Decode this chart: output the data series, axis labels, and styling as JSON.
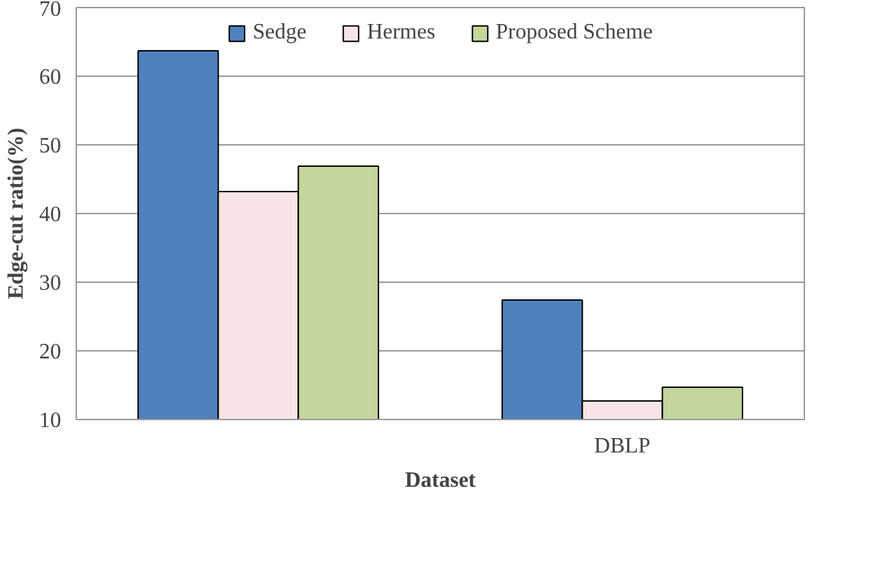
{
  "chart_data": {
    "type": "bar",
    "xlabel": "Dataset",
    "ylabel": "Edge-cut ratio(%)",
    "categories": [
      null,
      "DBLP"
    ],
    "series": [
      {
        "name": "Sedge",
        "color": "#4f81bd",
        "values": [
          63.7,
          27.4
        ]
      },
      {
        "name": "Hermes",
        "color": "#f8e4e4",
        "values": [
          43.2,
          12.7
        ]
      },
      {
        "name": "Proposed Scheme",
        "color": "#c3d69b",
        "values": [
          46.9,
          14.7
        ]
      }
    ],
    "ylim": [
      10,
      70
    ],
    "yticks": [
      10,
      20,
      30,
      40,
      50,
      60,
      70
    ],
    "grid": "y",
    "legend": "top"
  }
}
